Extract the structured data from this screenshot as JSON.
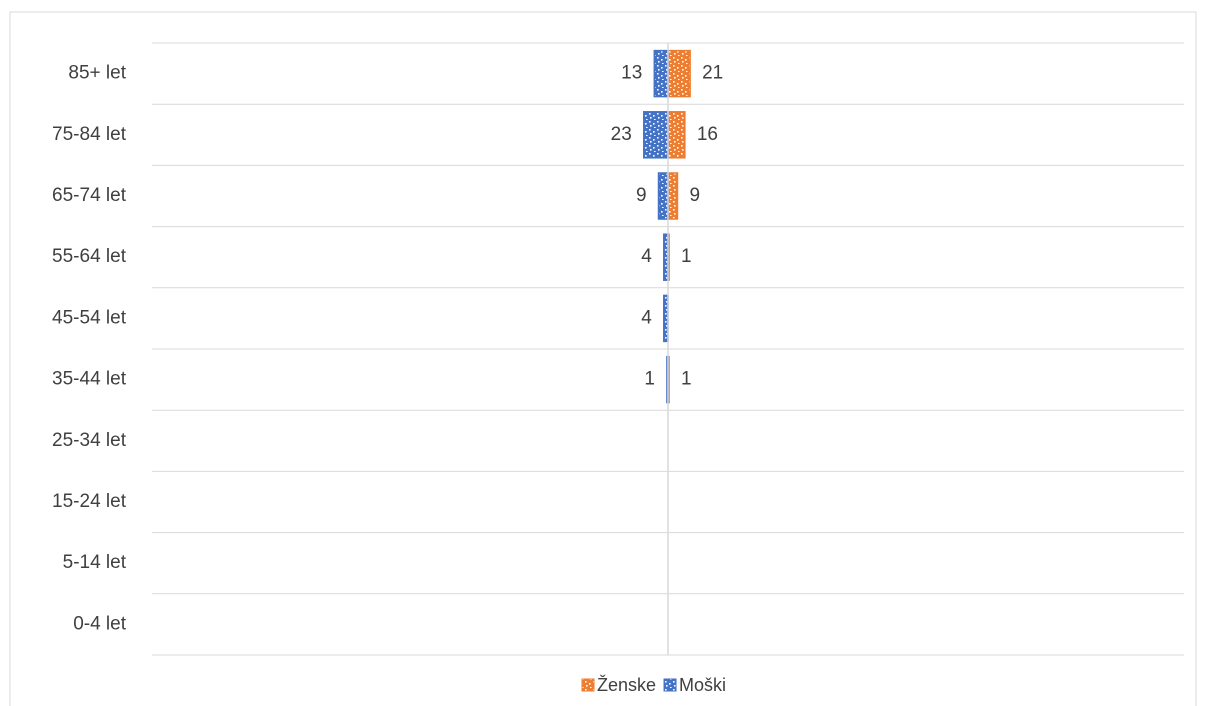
{
  "chart_data": {
    "type": "pyramid",
    "categories": [
      "85+ let",
      "75-84 let",
      "65-74 let",
      "55-64 let",
      "45-54 let",
      "35-44 let",
      "25-34 let",
      "15-24 let",
      "5-14 let",
      "0-4 let"
    ],
    "series": [
      {
        "name": "Ženske",
        "color": "#ed7d31",
        "side": "right",
        "values": [
          21,
          16,
          9,
          1,
          null,
          1,
          null,
          null,
          null,
          null
        ]
      },
      {
        "name": "Moški",
        "color": "#4472c4",
        "side": "left",
        "values": [
          13,
          23,
          9,
          4,
          4,
          1,
          null,
          null,
          null,
          null
        ]
      }
    ],
    "xlim": [
      0,
      490
    ]
  }
}
